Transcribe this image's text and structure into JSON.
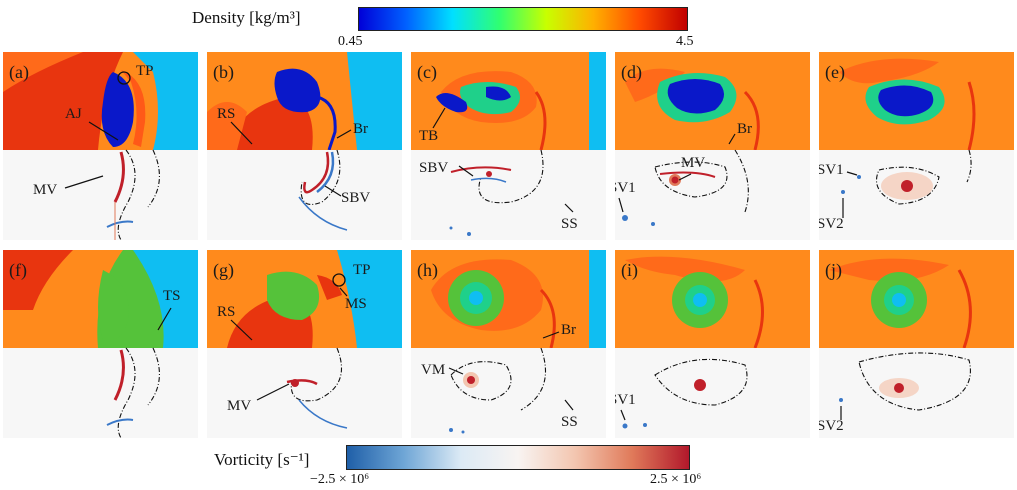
{
  "colorbars": {
    "density": {
      "title": "Density [kg/m³]",
      "min_label": "0.45",
      "max_label": "4.5",
      "gradient": [
        "#0000d8",
        "#0060ff",
        "#00e0ff",
        "#30ff70",
        "#c8ff00",
        "#ffb000",
        "#ff4a00",
        "#c00000"
      ]
    },
    "vorticity": {
      "title": "Vorticity [s⁻¹]",
      "min_label": "−2.5 × 10⁶",
      "max_label": "2.5 × 10⁶",
      "gradient": [
        "#1f5fa8",
        "#6fa6d6",
        "#dceaf5",
        "#f8f4f2",
        "#f3c6b0",
        "#e07a5a",
        "#b2182b"
      ]
    }
  },
  "rows": [
    {
      "panels": [
        {
          "label": "(a)",
          "annotations": [
            "TP",
            "AJ",
            "MV"
          ]
        },
        {
          "label": "(b)",
          "annotations": [
            "RS",
            "Br",
            "SBV"
          ]
        },
        {
          "label": "(c)",
          "annotations": [
            "TB",
            "SBV",
            "SS"
          ]
        },
        {
          "label": "(d)",
          "annotations": [
            "Br",
            "MV",
            "SV1"
          ]
        },
        {
          "label": "(e)",
          "annotations": [
            "SV1",
            "SV2"
          ]
        }
      ]
    },
    {
      "panels": [
        {
          "label": "(f)",
          "annotations": [
            "TS"
          ]
        },
        {
          "label": "(g)",
          "annotations": [
            "TP",
            "RS",
            "MS",
            "MV"
          ]
        },
        {
          "label": "(h)",
          "annotations": [
            "Br",
            "VM",
            "SS"
          ]
        },
        {
          "label": "(i)",
          "annotations": [
            "SV1"
          ]
        },
        {
          "label": "(j)",
          "annotations": [
            "SV2"
          ]
        }
      ]
    }
  ],
  "colors": {
    "bg_orange": "#ff8a1c",
    "bg_cyan": "#0fbef2",
    "bg_green": "#55c23a",
    "bg_red": "#e8350f",
    "bubble_blue": "#0a18c9",
    "bubble_green": "#1fd08a",
    "vort_red": "#c0202a",
    "vort_blue": "#3a78c8",
    "vort_bg": "#f7f7f7"
  }
}
